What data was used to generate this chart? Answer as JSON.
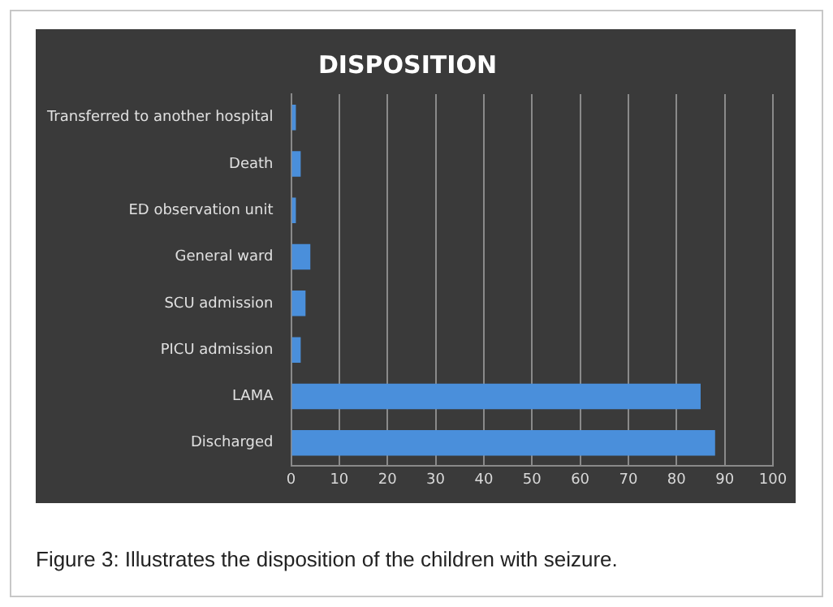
{
  "chart_data": {
    "type": "bar",
    "orientation": "horizontal",
    "title": "DISPOSITION",
    "categories": [
      "Transferred to another hospital",
      "Death",
      "ED observation unit",
      "General ward",
      "SCU admission",
      "PICU admission",
      "LAMA",
      "Discharged"
    ],
    "values": [
      1,
      2,
      1,
      4,
      3,
      2,
      85,
      88
    ],
    "color": "#4a8fdb",
    "xlim": [
      0,
      100
    ],
    "xticks": [
      0,
      10,
      20,
      30,
      40,
      50,
      60,
      70,
      80,
      90,
      100
    ],
    "grid": "x",
    "legend": false,
    "annotations": [
      "Figure 3: Illustrates the disposition of the children with seizure."
    ]
  }
}
